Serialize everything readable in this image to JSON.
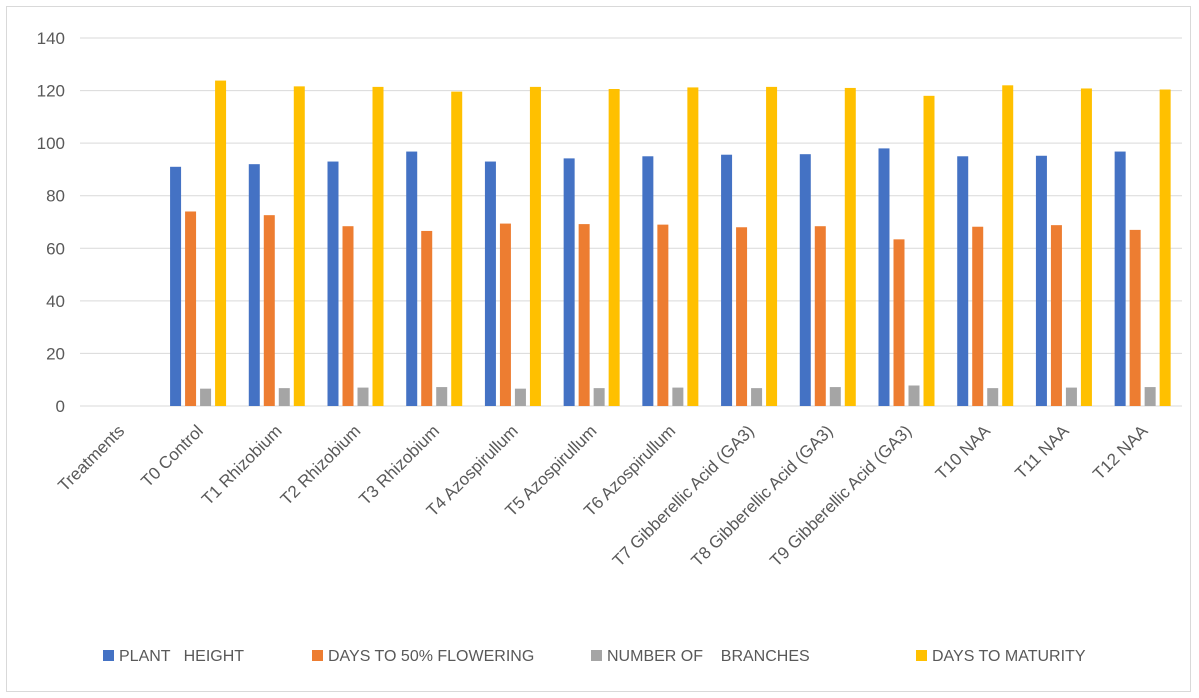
{
  "chart_data": {
    "type": "bar",
    "title": "",
    "xlabel": "",
    "ylabel": "",
    "ylim": [
      0,
      140
    ],
    "yticks": [
      0,
      20,
      40,
      60,
      80,
      100,
      120,
      140
    ],
    "grid": true,
    "legend_position": "bottom",
    "categories": [
      "Treatments",
      "T0 Control",
      "T1 Rhizobium",
      "T2 Rhizobium",
      "T3 Rhizobium",
      "T4 Azospirullum",
      "T5 Azospirullum",
      "T6 Azospirullum",
      "T7 Gibberellic Acid (GA3)",
      "T8 Gibberellic Acid (GA3)",
      "T9 Gibberellic Acid (GA3)",
      "T10 NAA",
      "T11 NAA",
      "T12 NAA"
    ],
    "series": [
      {
        "name": "PLANT   HEIGHT",
        "color": "#4472c4",
        "values": [
          null,
          91,
          92,
          93,
          96.8,
          93,
          94.2,
          95,
          95.6,
          95.8,
          98,
          95,
          95.2,
          96.8
        ]
      },
      {
        "name": "DAYS TO 50% FLOWERING",
        "color": "#ed7d31",
        "values": [
          null,
          74,
          72.6,
          68.4,
          66.6,
          69.4,
          69.2,
          69,
          68,
          68.4,
          63.4,
          68.2,
          68.8,
          67
        ]
      },
      {
        "name": "NUMBER OF    BRANCHES",
        "color": "#a5a5a5",
        "values": [
          null,
          6.6,
          6.8,
          7,
          7.2,
          6.6,
          6.8,
          7,
          6.8,
          7.2,
          7.8,
          6.8,
          7,
          7.2
        ]
      },
      {
        "name": "DAYS TO MATURITY",
        "color": "#ffc000",
        "values": [
          null,
          123.8,
          121.6,
          121.4,
          119.6,
          121.4,
          120.6,
          121.2,
          121.4,
          121,
          118,
          122,
          120.8,
          120.4
        ]
      }
    ]
  }
}
